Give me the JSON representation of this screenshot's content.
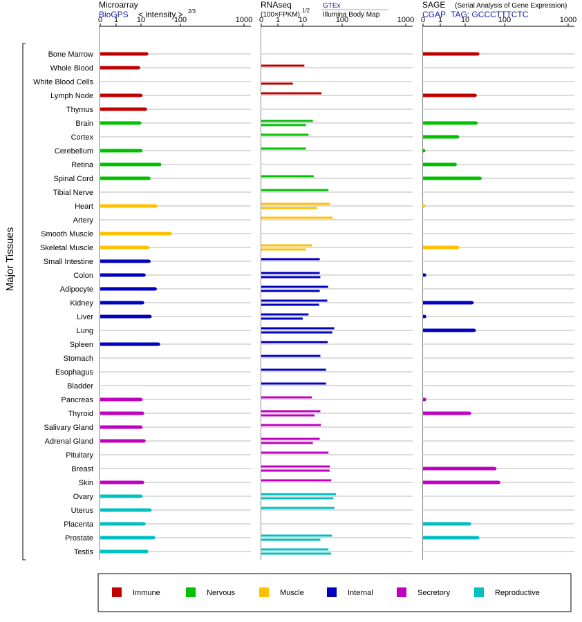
{
  "panels": [
    {
      "id": "microarray",
      "title": "Microarray",
      "source": "BioGPS",
      "unit_label": "< intensity >",
      "unit_sup": "2/3",
      "ticks": [
        "0",
        "1",
        "10",
        "100",
        "1000"
      ]
    },
    {
      "id": "rnaseq",
      "title": "RNAseq",
      "unit_label": "(100×FPKM)",
      "unit_sup": "1/2",
      "sources": [
        "GTEx",
        "Illumina Body Map"
      ],
      "ticks": [
        "0",
        "1",
        "10",
        "100",
        "1000"
      ]
    },
    {
      "id": "sage",
      "title": "SAGE",
      "note": "(Serial Analysis of Gene Expression)",
      "source": "CGAP",
      "tag_label": "TAG: GCCCTTTCTC",
      "ticks": [
        "0",
        "1",
        "10",
        "100",
        "1000"
      ]
    }
  ],
  "y_axis_label": "Major Tissues",
  "legend": [
    {
      "name": "Immune",
      "color": "#c00000"
    },
    {
      "name": "Nervous",
      "color": "#00c000"
    },
    {
      "name": "Muscle",
      "color": "#ffc000"
    },
    {
      "name": "Internal",
      "color": "#0000c0"
    },
    {
      "name": "Secretory",
      "color": "#c000c0"
    },
    {
      "name": "Reproductive",
      "color": "#00c0c0"
    }
  ],
  "chart_data": {
    "type": "bar",
    "orientation": "horizontal",
    "x_scale": "non-linear (compressed), ticks 0, 1, 10, 100, 1000",
    "xlim": [
      0,
      1000
    ],
    "grid": true,
    "legend_position": "bottom",
    "categories": [
      "Bone Marrow",
      "Whole Blood",
      "White Blood Cells",
      "Lymph Node",
      "Thymus",
      "Brain",
      "Cortex",
      "Cerebellum",
      "Retina",
      "Spinal Cord",
      "Tibial Nerve",
      "Heart",
      "Artery",
      "Smooth Muscle",
      "Skeletal Muscle",
      "Small Intestine",
      "Colon",
      "Adipocyte",
      "Kidney",
      "Liver",
      "Lung",
      "Spleen",
      "Stomach",
      "Esophagus",
      "Bladder",
      "Pancreas",
      "Thyroid",
      "Salivary Gland",
      "Adrenal Gland",
      "Pituitary",
      "Breast",
      "Skin",
      "Ovary",
      "Uterus",
      "Placenta",
      "Prostate",
      "Testis"
    ],
    "category_groups": [
      "Immune",
      "Immune",
      "Immune",
      "Immune",
      "Immune",
      "Nervous",
      "Nervous",
      "Nervous",
      "Nervous",
      "Nervous",
      "Nervous",
      "Muscle",
      "Muscle",
      "Muscle",
      "Muscle",
      "Internal",
      "Internal",
      "Internal",
      "Internal",
      "Internal",
      "Internal",
      "Internal",
      "Internal",
      "Internal",
      "Internal",
      "Secretory",
      "Secretory",
      "Secretory",
      "Secretory",
      "Secretory",
      "Secretory",
      "Secretory",
      "Reproductive",
      "Reproductive",
      "Reproductive",
      "Reproductive",
      "Reproductive"
    ],
    "series": [
      {
        "name": "BioGPS",
        "panel": "microarray",
        "values": [
          14,
          8,
          null,
          10,
          13,
          9,
          null,
          10,
          30,
          16,
          null,
          24,
          null,
          55,
          15,
          16,
          12,
          23,
          11,
          17,
          null,
          28,
          null,
          null,
          null,
          10,
          11,
          10,
          12,
          null,
          null,
          11,
          10,
          17,
          12,
          21,
          14
        ]
      },
      {
        "name": "GTEx",
        "panel": "rnaseq",
        "values": [
          null,
          11,
          null,
          30,
          null,
          18,
          14,
          12,
          null,
          19,
          45,
          50,
          58,
          null,
          17,
          27,
          27,
          44,
          42,
          14,
          63,
          43,
          28,
          39,
          39,
          17,
          28,
          29,
          27,
          45,
          49,
          53,
          70,
          64,
          null,
          55,
          45
        ]
      },
      {
        "name": "Illumina Body Map",
        "panel": "rnaseq",
        "values": [
          null,
          null,
          4,
          null,
          null,
          12,
          null,
          null,
          null,
          null,
          null,
          23,
          null,
          null,
          12,
          null,
          28,
          27,
          26,
          10,
          56,
          null,
          null,
          null,
          null,
          null,
          20,
          null,
          18,
          null,
          48,
          null,
          60,
          null,
          null,
          28,
          52
        ]
      },
      {
        "name": "SAGE",
        "panel": "sage",
        "values": [
          21,
          null,
          null,
          18,
          null,
          19,
          5,
          0.05,
          4,
          24,
          null,
          0.05,
          null,
          null,
          5,
          null,
          0.1,
          null,
          15,
          0.1,
          17,
          null,
          null,
          null,
          null,
          0.1,
          13,
          null,
          null,
          null,
          57,
          71,
          null,
          null,
          13,
          21,
          null
        ]
      }
    ]
  }
}
